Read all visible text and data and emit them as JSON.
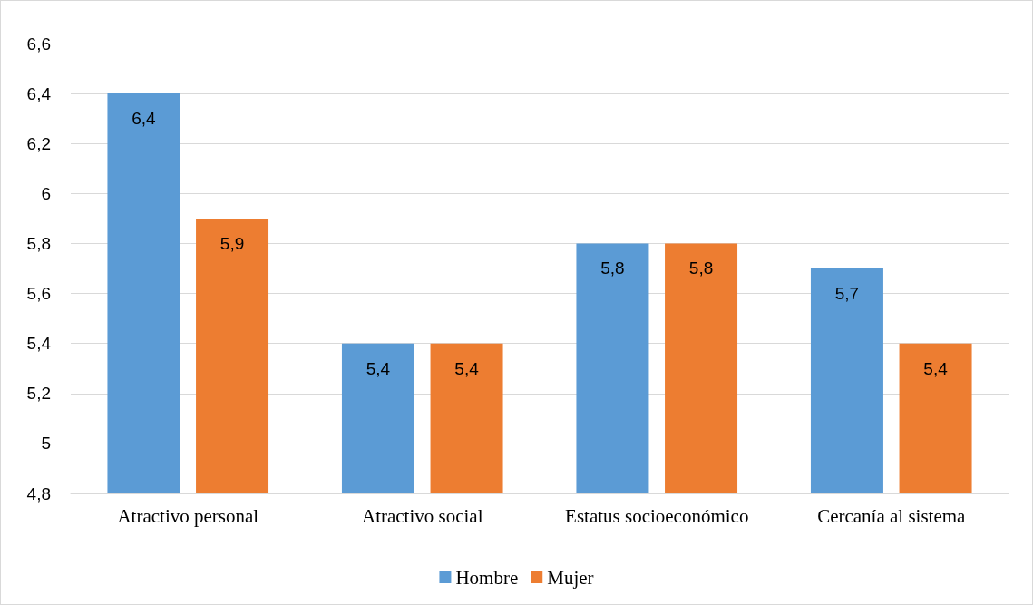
{
  "chart_data": {
    "type": "bar",
    "categories": [
      "Atractivo personal",
      "Atractivo social",
      "Estatus socioeconómico",
      "Cercanía al sistema"
    ],
    "series": [
      {
        "name": "Hombre",
        "color": "#5b9bd5",
        "values": [
          6.4,
          5.4,
          5.8,
          5.7
        ],
        "value_labels": [
          "6,4",
          "5,4",
          "5,8",
          "5,7"
        ]
      },
      {
        "name": "Mujer",
        "color": "#ed7d31",
        "values": [
          5.9,
          5.4,
          5.8,
          5.4
        ],
        "value_labels": [
          "5,9",
          "5,4",
          "5,8",
          "5,4"
        ]
      }
    ],
    "ylim": [
      4.8,
      6.6
    ],
    "yticks": [
      {
        "value": 4.8,
        "label": "4,8"
      },
      5,
      {
        "value": 5.2,
        "label": "5,2"
      },
      {
        "value": 5.4,
        "label": "5,4"
      },
      {
        "value": 5.6,
        "label": "5,6"
      },
      {
        "value": 5.8,
        "label": "5,8"
      },
      6,
      {
        "value": 6.2,
        "label": "6,2"
      },
      {
        "value": 6.4,
        "label": "6,4"
      },
      {
        "value": 6.6,
        "label": "6,6"
      }
    ],
    "grid": "y",
    "legend": "bottom"
  }
}
